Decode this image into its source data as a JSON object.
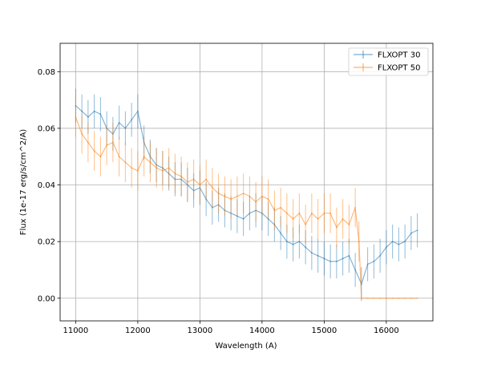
{
  "chart_data": {
    "type": "line",
    "title": "",
    "xlabel": "Wavelength (A)",
    "ylabel": "Flux (1e-17 erg/s/cm^2/A)",
    "xlim": [
      10750,
      16750
    ],
    "ylim": [
      -0.008,
      0.09
    ],
    "xticks": [
      11000,
      12000,
      13000,
      14000,
      15000,
      16000
    ],
    "yticks": [
      0.0,
      0.02,
      0.04,
      0.06,
      0.08
    ],
    "xtick_labels": [
      "11000",
      "12000",
      "13000",
      "14000",
      "15000",
      "16000"
    ],
    "ytick_labels": [
      "0.00",
      "0.02",
      "0.04",
      "0.06",
      "0.08"
    ],
    "grid": true,
    "legend_position": "top-right",
    "series": [
      {
        "name": "FLXOPT 30",
        "color": "#1f77b4",
        "style": "errorbar",
        "x": [
          11000,
          11100,
          11200,
          11300,
          11400,
          11500,
          11600,
          11700,
          11800,
          11900,
          12000,
          12100,
          12200,
          12300,
          12400,
          12500,
          12600,
          12700,
          12800,
          12900,
          13000,
          13100,
          13200,
          13300,
          13400,
          13500,
          13600,
          13700,
          13800,
          13900,
          14000,
          14100,
          14200,
          14300,
          14400,
          14500,
          14600,
          14700,
          14800,
          14900,
          15000,
          15100,
          15200,
          15300,
          15400,
          15500,
          15600,
          15700,
          15800,
          15900,
          16000,
          16100,
          16200,
          16300,
          16400,
          16500
        ],
        "y": [
          0.068,
          0.066,
          0.064,
          0.066,
          0.065,
          0.06,
          0.058,
          0.062,
          0.06,
          0.063,
          0.066,
          0.055,
          0.05,
          0.047,
          0.046,
          0.044,
          0.042,
          0.042,
          0.04,
          0.038,
          0.039,
          0.035,
          0.032,
          0.033,
          0.031,
          0.03,
          0.029,
          0.028,
          0.03,
          0.031,
          0.03,
          0.028,
          0.026,
          0.023,
          0.02,
          0.019,
          0.02,
          0.018,
          0.016,
          0.015,
          0.014,
          0.013,
          0.013,
          0.014,
          0.015,
          0.01,
          0.005,
          0.012,
          0.013,
          0.015,
          0.018,
          0.02,
          0.019,
          0.02,
          0.023,
          0.024
        ],
        "yerr": 0.006
      },
      {
        "name": "FLXOPT 50",
        "color": "#ff7f0e",
        "style": "errorbar",
        "x": [
          11000,
          11100,
          11200,
          11300,
          11400,
          11500,
          11600,
          11700,
          11800,
          11900,
          12000,
          12100,
          12200,
          12300,
          12400,
          12500,
          12600,
          12700,
          12800,
          12900,
          13000,
          13100,
          13200,
          13300,
          13400,
          13500,
          13600,
          13700,
          13800,
          13900,
          14000,
          14100,
          14200,
          14300,
          14400,
          14500,
          14600,
          14700,
          14800,
          14900,
          15000,
          15100,
          15200,
          15300,
          15400,
          15500,
          15560,
          15600,
          15700,
          15800,
          15900,
          16000,
          16100,
          16200,
          16300,
          16400,
          16500
        ],
        "y": [
          0.064,
          0.058,
          0.055,
          0.052,
          0.05,
          0.054,
          0.055,
          0.05,
          0.048,
          0.046,
          0.045,
          0.05,
          0.048,
          0.046,
          0.045,
          0.046,
          0.044,
          0.043,
          0.041,
          0.042,
          0.04,
          0.042,
          0.039,
          0.037,
          0.036,
          0.035,
          0.036,
          0.037,
          0.036,
          0.034,
          0.036,
          0.035,
          0.031,
          0.032,
          0.03,
          0.028,
          0.03,
          0.026,
          0.03,
          0.028,
          0.03,
          0.03,
          0.025,
          0.028,
          0.026,
          0.032,
          0.02,
          0.0,
          0.0,
          0.0,
          0.0,
          0.0,
          0.0,
          0.0,
          0.0,
          0.0,
          0.0
        ],
        "yerr": 0.007
      }
    ]
  }
}
